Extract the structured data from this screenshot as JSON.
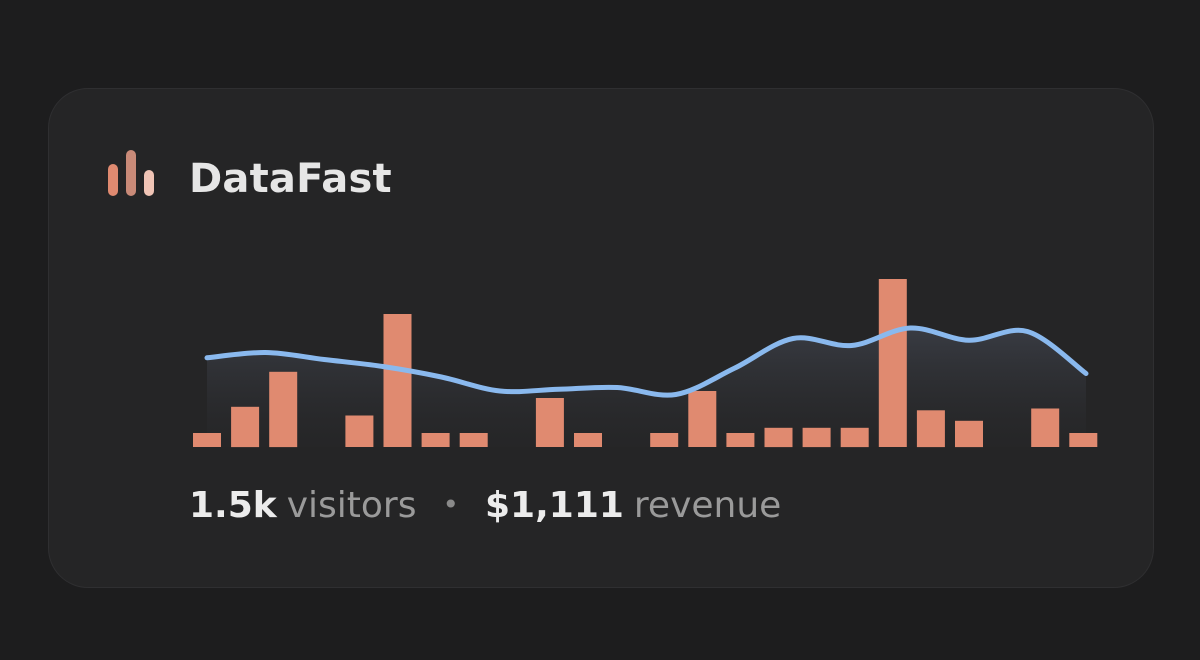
{
  "brand": {
    "name": "DataFast",
    "logo_icon": "bar-chart-logo-icon",
    "logo_colors": [
      "#e08a70",
      "#c98a78",
      "#f0c4b5"
    ]
  },
  "stats": {
    "visitors_value": "1.5k",
    "visitors_label": "visitors",
    "separator": "•",
    "revenue_value": "$1,111",
    "revenue_label": "revenue"
  },
  "colors": {
    "background": "#1d1d1e",
    "card": "#252526",
    "bars": "#e08a70",
    "line": "#8ab9ee"
  },
  "chart_data": {
    "type": "bar",
    "grid": false,
    "legend": "none",
    "ylim": [
      0,
      10
    ],
    "values": [
      0.8,
      2.3,
      4.3,
      0,
      1.8,
      7.6,
      0.8,
      0.8,
      0,
      2.8,
      0.8,
      0,
      0.8,
      3.2,
      0.8,
      1.1,
      1.1,
      1.1,
      9.6,
      2.1,
      1.5,
      0,
      2.2,
      0.8
    ],
    "line_values": [
      5.1,
      5.4,
      5.0,
      4.6,
      4.0,
      3.2,
      3.3,
      3.4,
      3.0,
      4.5,
      6.2,
      5.8,
      6.8,
      6.1,
      6.6,
      4.2
    ]
  }
}
